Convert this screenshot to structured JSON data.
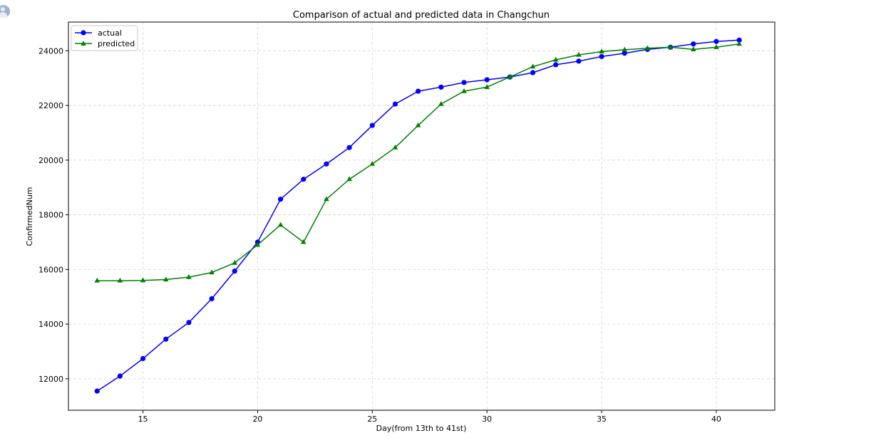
{
  "chart_data": {
    "type": "line",
    "title": "Comparison of actual and predicted data in Changchun",
    "xlabel": "Day(from 13th to 41st)",
    "ylabel": "ConfirmedNum",
    "xlim": [
      11.75,
      42.55
    ],
    "ylim": [
      10850,
      25050
    ],
    "xticks": [
      15,
      20,
      25,
      30,
      35,
      40
    ],
    "yticks": [
      12000,
      14000,
      16000,
      18000,
      20000,
      22000,
      24000
    ],
    "grid": true,
    "legend_position": "top-left",
    "x": [
      13,
      14,
      15,
      16,
      17,
      18,
      19,
      20,
      21,
      22,
      23,
      24,
      25,
      26,
      27,
      28,
      29,
      30,
      31,
      32,
      33,
      34,
      35,
      36,
      37,
      38,
      39,
      40,
      41
    ],
    "series": [
      {
        "name": "actual",
        "color": "#0000ff",
        "marker": "circle",
        "values": [
          11550,
          12100,
          12740,
          13450,
          14060,
          14930,
          15940,
          17000,
          18570,
          19300,
          19860,
          20460,
          21270,
          22050,
          22520,
          22670,
          22840,
          22940,
          23040,
          23200,
          23490,
          23620,
          23790,
          23910,
          24050,
          24130,
          24250,
          24340,
          24390
        ]
      },
      {
        "name": "predicted",
        "color": "#008000",
        "marker": "triangle",
        "values": [
          15590,
          15590,
          15600,
          15630,
          15720,
          15890,
          16240,
          16900,
          17630,
          17000,
          18570,
          19300,
          19860,
          20460,
          21270,
          22050,
          22520,
          22670,
          23040,
          23420,
          23670,
          23850,
          23970,
          24040,
          24090,
          24130,
          24050,
          24130,
          24250
        ]
      }
    ]
  },
  "corner_icon": "user-avatar-icon"
}
